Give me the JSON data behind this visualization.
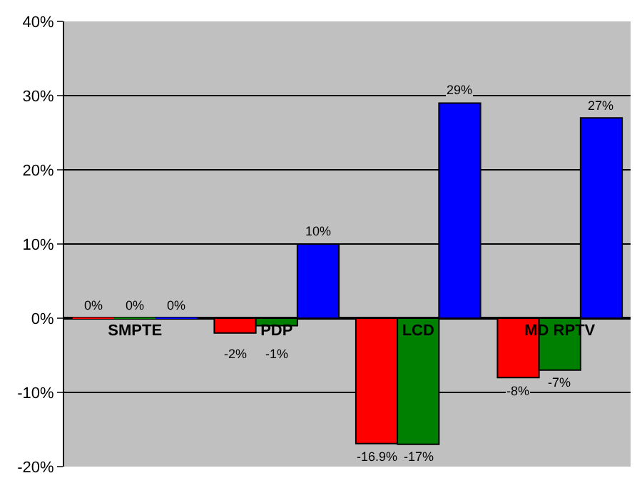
{
  "chart_data": {
    "type": "bar",
    "categories": [
      "SMPTE",
      "PDP",
      "LCD",
      "MD RPTV"
    ],
    "series": [
      {
        "color": "#ff0000",
        "values": [
          0,
          -2,
          -16.9,
          -8
        ],
        "value_labels": [
          "0%",
          "-2%",
          "-16.9%",
          "-8%"
        ]
      },
      {
        "color": "#008000",
        "values": [
          0,
          -1,
          -17,
          -7
        ],
        "value_labels": [
          "0%",
          "-1%",
          "-17%",
          "-7%"
        ]
      },
      {
        "color": "#0000ff",
        "values": [
          0,
          10,
          29,
          27
        ],
        "value_labels": [
          "0%",
          "10%",
          "29%",
          "27%"
        ]
      }
    ],
    "ylim": [
      -20,
      40
    ],
    "yticks": [
      {
        "value": -20,
        "label": "-20%"
      },
      {
        "value": -10,
        "label": "-10%"
      },
      {
        "value": 0,
        "label": "0%"
      },
      {
        "value": 10,
        "label": "10%"
      },
      {
        "value": 20,
        "label": "20%"
      },
      {
        "value": 30,
        "label": "30%"
      },
      {
        "value": 40,
        "label": "40%"
      }
    ],
    "grid": "y"
  }
}
